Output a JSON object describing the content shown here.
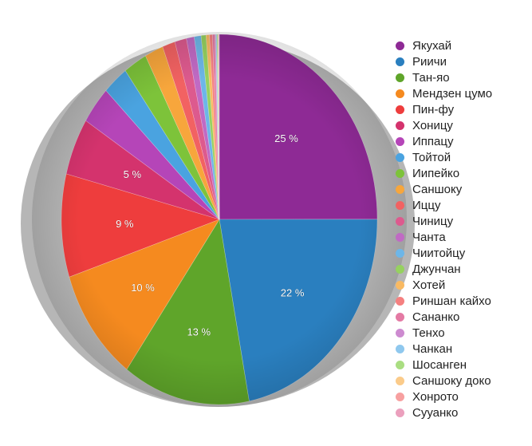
{
  "chart_data": {
    "type": "pie",
    "categories": [
      "Якухай",
      "Риичи",
      "Тан-яо",
      "Мендзен цумо",
      "Пин-фу",
      "Хоницу",
      "Иппацу",
      "Тойтой",
      "Иипейко",
      "Саншоку",
      "Иццу",
      "Чиницу",
      "Чанта",
      "Чиитойцу",
      "Джунчан",
      "Хотей",
      "Риншан кайхо",
      "Сананко",
      "Тенхо",
      "Чанкан",
      "Шосанген",
      "Саншоку доко",
      "Хонрото",
      "Сууанко"
    ],
    "values": [
      25,
      22,
      13,
      10,
      9,
      5,
      3.3,
      2.6,
      2.4,
      1.9,
      1.3,
      1.2,
      0.8,
      0.7,
      0.5,
      0.35,
      0.3,
      0.25,
      0.1,
      0.1,
      0.1,
      0.05,
      0.05,
      0.05
    ],
    "data_labels": [
      "25 %",
      "22 %",
      "13 %",
      "10 %",
      "9 %",
      "5 %",
      "",
      "",
      "",
      "",
      "",
      "",
      "",
      "",
      "",
      "",
      "",
      "",
      "",
      "",
      "",
      "",
      "",
      ""
    ],
    "colors": [
      "#8e2a95",
      "#2a7fbf",
      "#5fa52a",
      "#f58a1f",
      "#ee3d3d",
      "#d4336d",
      "#b545b8",
      "#4aa3e0",
      "#7dc33a",
      "#f7a63c",
      "#f26262",
      "#dd5a8e",
      "#c06ac4",
      "#6db6e8",
      "#96d160",
      "#f9ba63",
      "#f58080",
      "#e47aa4",
      "#cd8bd0",
      "#8fc8ee",
      "#aade82",
      "#fbcb8a",
      "#f7a0a0",
      "#eba0bd"
    ],
    "legend_position": "right"
  }
}
